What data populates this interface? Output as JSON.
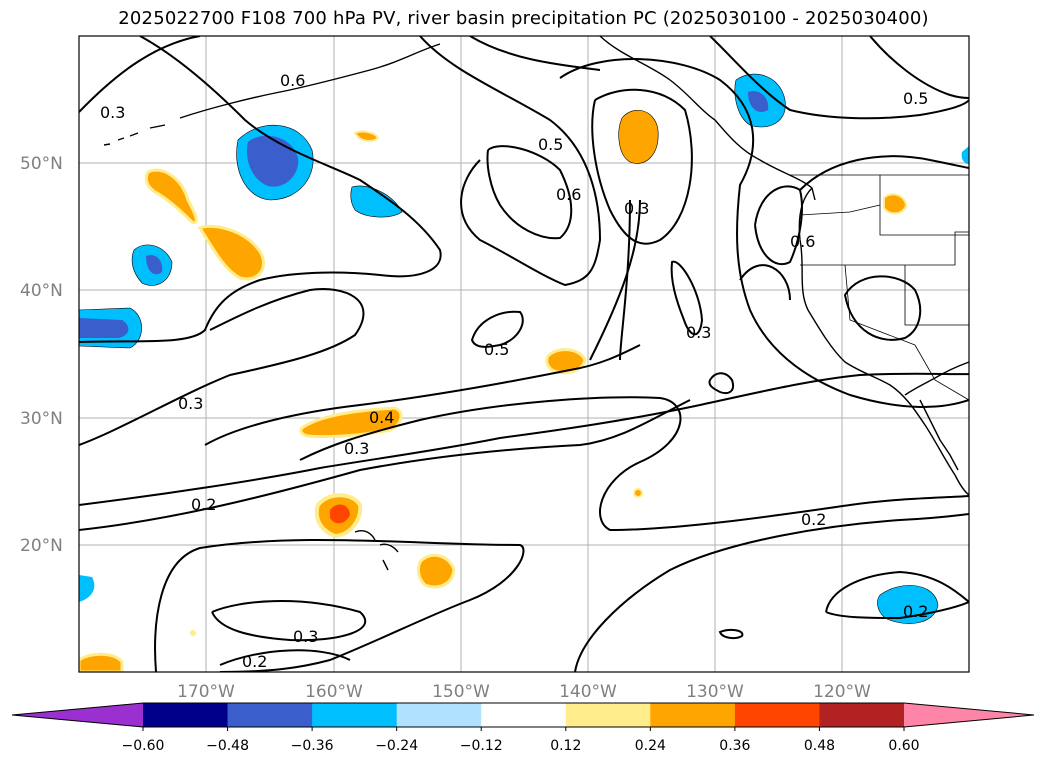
{
  "title": "2025022700 F108 700 hPa PV, river basin precipitation PC (2025030100 - 2025030400)",
  "lat_labels": [
    "50°N",
    "40°N",
    "30°N",
    "20°N"
  ],
  "lon_labels": [
    "170°W",
    "160°W",
    "150°W",
    "140°W",
    "130°W",
    "120°W"
  ],
  "contour_labels": [
    "0.6",
    "0.3",
    "0.5",
    "0.6",
    "0.3",
    "0.5",
    "0.6",
    "0.5",
    "0.3",
    "0.3",
    "0.4",
    "0.3",
    "0.2",
    "0.2",
    "0.2",
    "0.3",
    "0.2"
  ],
  "colorbar": {
    "ticks": [
      "−0.60",
      "−0.48",
      "−0.36",
      "−0.24",
      "−0.12",
      "0.12",
      "0.24",
      "0.36",
      "0.48",
      "0.60"
    ],
    "colors": [
      "#9b30d0",
      "#00008b",
      "#3a5fcd",
      "#00bfff",
      "#b0e2ff",
      "#ffffff",
      "#ffec8b",
      "#ffa500",
      "#ff4500",
      "#b22222",
      "#ff85a8"
    ]
  }
}
